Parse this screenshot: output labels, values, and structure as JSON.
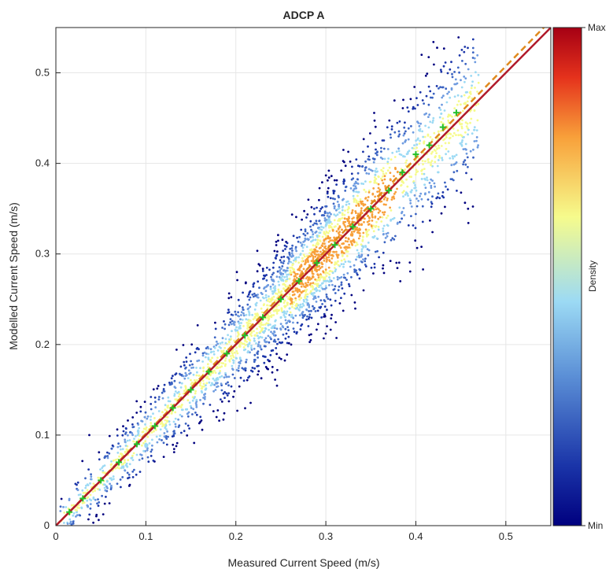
{
  "chart_data": {
    "type": "scatter",
    "title": "ADCP A",
    "xlabel": "Measured Current Speed (m/s)",
    "ylabel": "Modelled Current Speed (m/s)",
    "xlim": [
      0,
      0.55
    ],
    "ylim": [
      0,
      0.55
    ],
    "x_ticks": [
      "0",
      "0.1",
      "0.2",
      "0.3",
      "0.4",
      "0.5"
    ],
    "y_ticks": [
      "0",
      "0.1",
      "0.2",
      "0.3",
      "0.4",
      "0.5"
    ],
    "grid": true,
    "colorbar": {
      "label": "Density",
      "max_label": "Max",
      "min_label": "Min"
    },
    "colors": {
      "fit_line": "#e08a1e",
      "identity_line": "#b01a2a",
      "quantile_markers": "#22c02a"
    },
    "series": [
      {
        "kind": "density-scatter",
        "description_points": [
          [
            0.02,
            0.02
          ],
          [
            0.05,
            0.06
          ],
          [
            0.1,
            0.11
          ],
          [
            0.15,
            0.16
          ],
          [
            0.2,
            0.21
          ],
          [
            0.25,
            0.26
          ],
          [
            0.3,
            0.31
          ],
          [
            0.33,
            0.35
          ],
          [
            0.36,
            0.37
          ],
          [
            0.4,
            0.41
          ],
          [
            0.45,
            0.46
          ]
        ]
      },
      {
        "kind": "quantile-markers",
        "values": [
          [
            0.015,
            0.015
          ],
          [
            0.03,
            0.03
          ],
          [
            0.05,
            0.05
          ],
          [
            0.07,
            0.07
          ],
          [
            0.09,
            0.09
          ],
          [
            0.11,
            0.11
          ],
          [
            0.13,
            0.13
          ],
          [
            0.15,
            0.15
          ],
          [
            0.17,
            0.17
          ],
          [
            0.19,
            0.19
          ],
          [
            0.21,
            0.21
          ],
          [
            0.23,
            0.23
          ],
          [
            0.25,
            0.25
          ],
          [
            0.27,
            0.27
          ],
          [
            0.29,
            0.29
          ],
          [
            0.31,
            0.31
          ],
          [
            0.33,
            0.33
          ],
          [
            0.35,
            0.35
          ],
          [
            0.37,
            0.37
          ],
          [
            0.385,
            0.39
          ],
          [
            0.4,
            0.41
          ],
          [
            0.415,
            0.42
          ],
          [
            0.43,
            0.44
          ],
          [
            0.445,
            0.456
          ]
        ]
      },
      {
        "kind": "fit-line",
        "x": [
          0,
          0.55
        ],
        "y": [
          0,
          0.558
        ]
      },
      {
        "kind": "identity-line",
        "x": [
          0,
          0.55
        ],
        "y": [
          0,
          0.55
        ]
      }
    ]
  }
}
